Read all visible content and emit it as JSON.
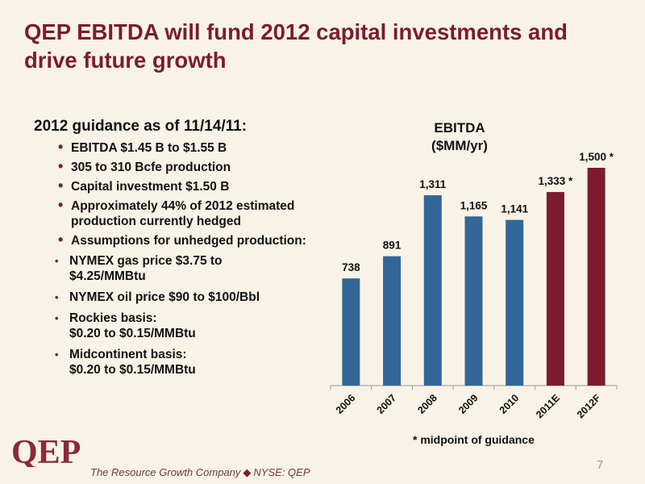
{
  "slide": {
    "title": "QEP EBITDA will fund 2012 capital investments and drive future growth",
    "page_number": "7",
    "footnote": "* midpoint of guidance",
    "logo_text": "QEP",
    "tagline_left": "The Resource Growth Company",
    "tagline_right": "NYSE: QEP"
  },
  "guidance": {
    "heading": "2012 guidance as of 11/14/11:",
    "bullets": [
      "EBITDA $1.45 B to $1.55 B",
      "305 to 310 Bcfe production",
      "Capital investment $1.50 B",
      "Approximately 44% of 2012 estimated production currently hedged",
      "Assumptions for unhedged production:"
    ],
    "sub_bullets": [
      {
        "line1": "NYMEX gas price $3.75 to",
        "line2": "$4.25/MMBtu"
      },
      {
        "line1": "NYMEX oil price $90 to $100/Bbl",
        "line2": ""
      },
      {
        "line1": "Rockies basis:",
        "line2": "$0.20 to $0.15/MMBtu"
      },
      {
        "line1": "Midcontinent basis:",
        "line2": "$0.20 to $0.15/MMBtu"
      }
    ]
  },
  "colors": {
    "actual": "#336699",
    "estimate": "#7b1c2e",
    "title": "#7b1c2e",
    "background": "#f8f3e6"
  },
  "chart_data": {
    "type": "bar",
    "title_line1": "EBITDA",
    "title_line2": "($MM/yr)",
    "categories": [
      "2006",
      "2007",
      "2008",
      "2009",
      "2010",
      "2011E",
      "2012F"
    ],
    "values": [
      738,
      891,
      1311,
      1165,
      1141,
      1333,
      1500
    ],
    "data_labels": [
      "738",
      "891",
      "1,311",
      "1,165",
      "1,141",
      "1,333 *",
      "1,500 *"
    ],
    "bar_colors": [
      "actual",
      "actual",
      "actual",
      "actual",
      "actual",
      "estimate",
      "estimate"
    ],
    "ylim": [
      0,
      1600
    ],
    "grid": false,
    "legend": "none"
  }
}
